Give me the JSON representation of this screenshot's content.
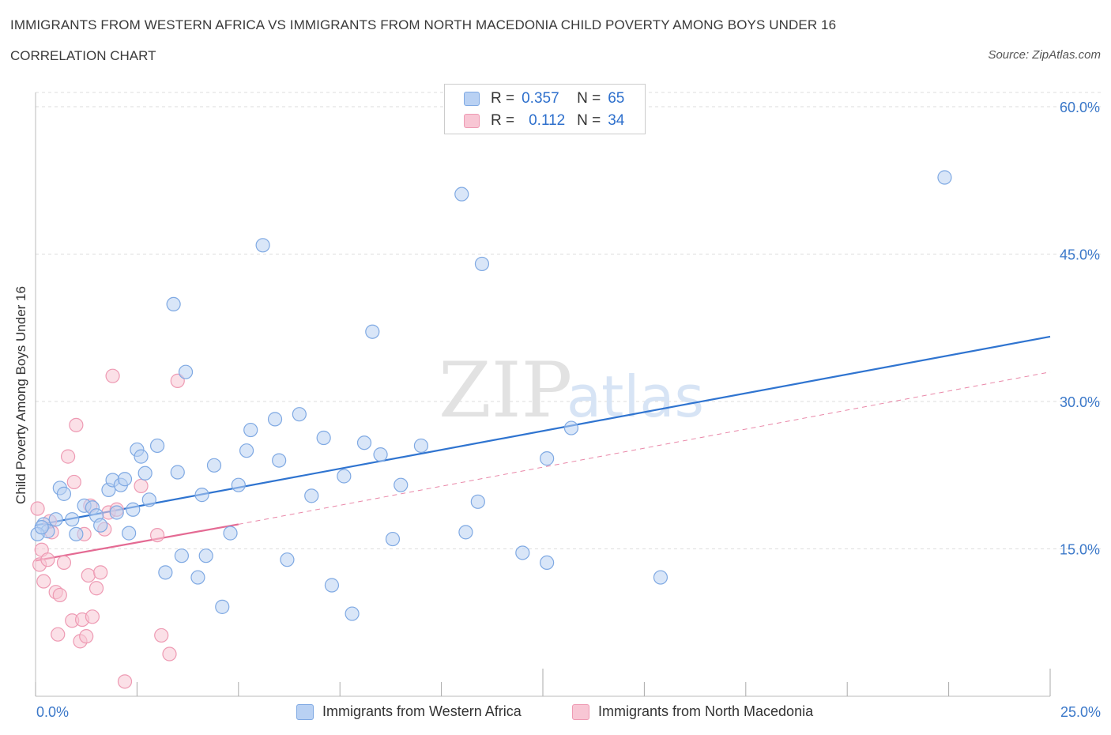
{
  "header": {
    "title": "IMMIGRANTS FROM WESTERN AFRICA VS IMMIGRANTS FROM NORTH MACEDONIA CHILD POVERTY AMONG BOYS UNDER 16",
    "subtitle": "CORRELATION CHART",
    "source": "Source: ZipAtlas.com"
  },
  "watermark": {
    "zip": "ZIP",
    "atlas": "atlas"
  },
  "legend": {
    "rows": [
      {
        "r_label": "R =",
        "r_value": "0.357",
        "n_label": "N =",
        "n_value": "65"
      },
      {
        "r_label": "R =",
        "r_value": "0.112",
        "n_label": "N =",
        "n_value": "34"
      }
    ]
  },
  "colors": {
    "blue_fill": "#b9d1f3",
    "blue_stroke": "#7fa9e3",
    "blue_line": "#2f74d0",
    "pink_fill": "#f8c6d4",
    "pink_stroke": "#ee9ab3",
    "pink_line": "#e46a93",
    "axis_label": "#3b78c9",
    "grid": "#dddddd"
  },
  "chart_data": {
    "type": "scatter",
    "title": "IMMIGRANTS FROM WESTERN AFRICA VS IMMIGRANTS FROM NORTH MACEDONIA CHILD POVERTY AMONG BOYS UNDER 16",
    "xlabel": "",
    "ylabel": "Child Poverty Among Boys Under 16",
    "xlim": [
      0,
      25
    ],
    "ylim": [
      0,
      60
    ],
    "x_tick_labels": [
      "0.0%",
      "25.0%"
    ],
    "y_tick_labels": [
      "15.0%",
      "30.0%",
      "45.0%",
      "60.0%"
    ],
    "y_ticks": [
      15,
      30,
      45,
      60
    ],
    "grid": "horizontal dashed",
    "legend_position": "top-center",
    "series": [
      {
        "name": "Immigrants from Western Africa",
        "color": "blue",
        "R": 0.357,
        "N": 65,
        "trend": {
          "x": [
            0,
            25
          ],
          "y": [
            17.4,
            36.6
          ],
          "style": "solid"
        },
        "points": [
          [
            0.2,
            17.5
          ],
          [
            0.3,
            16.8
          ],
          [
            0.5,
            18.0
          ],
          [
            0.6,
            21.2
          ],
          [
            0.7,
            20.6
          ],
          [
            0.9,
            18.0
          ],
          [
            1.0,
            16.5
          ],
          [
            1.2,
            19.4
          ],
          [
            1.4,
            19.2
          ],
          [
            1.5,
            18.4
          ],
          [
            1.6,
            17.4
          ],
          [
            1.8,
            21.0
          ],
          [
            1.9,
            22.0
          ],
          [
            2.0,
            18.7
          ],
          [
            2.1,
            21.5
          ],
          [
            2.2,
            22.1
          ],
          [
            2.3,
            16.6
          ],
          [
            2.4,
            19.0
          ],
          [
            2.5,
            25.1
          ],
          [
            2.6,
            24.4
          ],
          [
            2.7,
            22.7
          ],
          [
            2.8,
            20.0
          ],
          [
            3.0,
            25.5
          ],
          [
            3.2,
            12.6
          ],
          [
            3.4,
            39.9
          ],
          [
            3.5,
            22.8
          ],
          [
            3.6,
            14.3
          ],
          [
            3.7,
            33.0
          ],
          [
            4.0,
            12.1
          ],
          [
            4.1,
            20.5
          ],
          [
            4.2,
            14.3
          ],
          [
            4.4,
            23.5
          ],
          [
            4.6,
            9.1
          ],
          [
            4.8,
            16.6
          ],
          [
            5.0,
            21.5
          ],
          [
            5.2,
            25.0
          ],
          [
            5.3,
            27.1
          ],
          [
            5.6,
            45.9
          ],
          [
            5.9,
            28.2
          ],
          [
            6.0,
            24.0
          ],
          [
            6.2,
            13.9
          ],
          [
            6.5,
            28.7
          ],
          [
            6.8,
            20.4
          ],
          [
            7.1,
            26.3
          ],
          [
            7.3,
            11.3
          ],
          [
            7.6,
            22.4
          ],
          [
            7.8,
            8.4
          ],
          [
            8.1,
            25.8
          ],
          [
            8.3,
            37.1
          ],
          [
            8.5,
            24.6
          ],
          [
            8.8,
            16.0
          ],
          [
            9.0,
            21.5
          ],
          [
            9.5,
            25.5
          ],
          [
            10.5,
            51.1
          ],
          [
            10.6,
            16.7
          ],
          [
            10.9,
            19.8
          ],
          [
            11.0,
            44.0
          ],
          [
            12.0,
            14.6
          ],
          [
            12.6,
            24.2
          ],
          [
            12.6,
            13.6
          ],
          [
            13.2,
            27.3
          ],
          [
            15.4,
            12.1
          ],
          [
            22.4,
            52.8
          ],
          [
            0.05,
            16.5
          ],
          [
            0.15,
            17.2
          ]
        ]
      },
      {
        "name": "Immigrants from North Macedonia",
        "color": "pink",
        "R": 0.112,
        "N": 34,
        "trend": {
          "x": [
            0,
            5
          ],
          "y": [
            13.8,
            17.5
          ],
          "style": "solid",
          "extended": {
            "x": [
              5,
              25
            ],
            "y": [
              17.5,
              33.0
            ],
            "style": "dashed"
          }
        },
        "points": [
          [
            0.05,
            19.1
          ],
          [
            0.1,
            13.4
          ],
          [
            0.15,
            14.9
          ],
          [
            0.2,
            11.7
          ],
          [
            0.3,
            13.9
          ],
          [
            0.4,
            16.7
          ],
          [
            0.5,
            10.6
          ],
          [
            0.55,
            6.3
          ],
          [
            0.6,
            10.3
          ],
          [
            0.7,
            13.6
          ],
          [
            0.8,
            24.4
          ],
          [
            0.9,
            7.7
          ],
          [
            0.95,
            21.8
          ],
          [
            1.0,
            27.6
          ],
          [
            1.1,
            5.6
          ],
          [
            1.15,
            7.8
          ],
          [
            1.2,
            16.5
          ],
          [
            1.25,
            6.1
          ],
          [
            1.3,
            12.3
          ],
          [
            1.35,
            19.4
          ],
          [
            1.4,
            8.1
          ],
          [
            1.5,
            11.0
          ],
          [
            1.6,
            12.6
          ],
          [
            1.7,
            17.0
          ],
          [
            1.8,
            18.7
          ],
          [
            1.9,
            32.6
          ],
          [
            2.0,
            19.0
          ],
          [
            2.2,
            1.5
          ],
          [
            2.6,
            21.4
          ],
          [
            3.0,
            16.4
          ],
          [
            3.1,
            6.2
          ],
          [
            3.3,
            4.3
          ],
          [
            3.5,
            32.1
          ],
          [
            0.35,
            17.8
          ]
        ]
      }
    ]
  },
  "bottom_legend": {
    "items": [
      {
        "label": "Immigrants from Western Africa"
      },
      {
        "label": "Immigrants from North Macedonia"
      }
    ]
  }
}
